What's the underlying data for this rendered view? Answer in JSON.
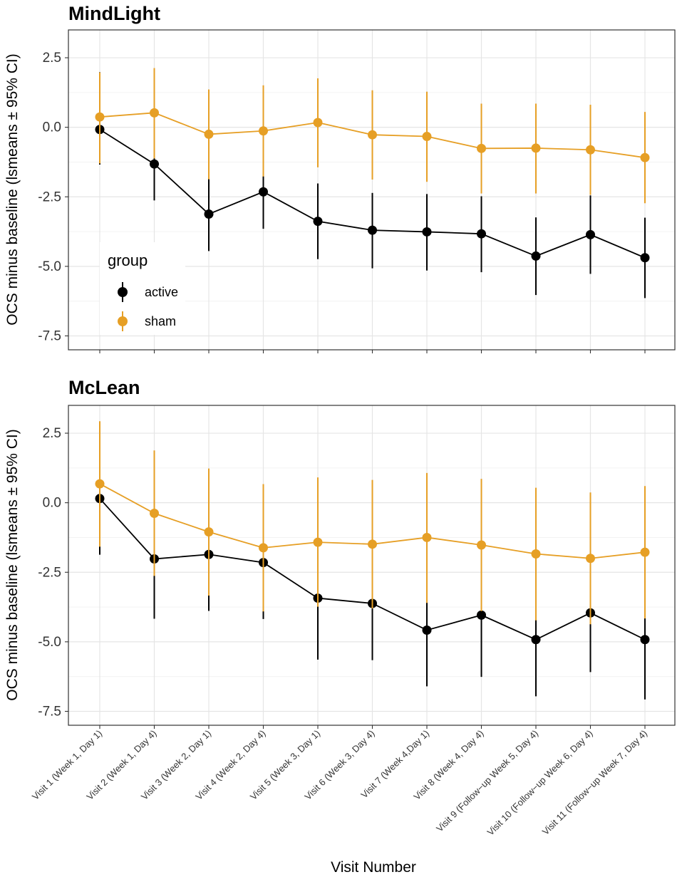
{
  "chart_data": [
    {
      "type": "line",
      "title": "MindLight",
      "ylabel": "OCS minus baseline (lsmeans ± 95% CI)",
      "xlabel": "",
      "ylim": [
        -8.0,
        3.5
      ],
      "yticks": [
        2.5,
        0.0,
        -2.5,
        -5.0,
        -7.5
      ],
      "ytick_labels": [
        "2.5",
        "0.0",
        "-2.5",
        "-5.0",
        "-7.5"
      ],
      "grid": true,
      "legend": {
        "title": "group",
        "position": "bottom-left",
        "entries": [
          "active",
          "sham"
        ]
      },
      "categories": [
        "Visit 1 (Week 1, Day 1)",
        "Visit 2 (Week 1, Day 4)",
        "Visit 3 (Week 2, Day 1)",
        "Visit 4 (Week 2, Day 4)",
        "Visit 5 (Week 3, Day 1)",
        "Visit 6 (Week 3, Day 4)",
        "Visit 7 (Week 4,Day 1)",
        "Visit 8 (Week 4, Day 4)",
        "Visit 9 (Follow−up Week 5, Day 4)",
        "Visit 10 (Follow−up Week 6, Day 4)",
        "Visit 11 (Follow−up Week 7, Day 4)"
      ],
      "series": [
        {
          "name": "active",
          "color": "#000000",
          "values": [
            -0.08,
            -1.32,
            -3.12,
            -2.32,
            -3.38,
            -3.7,
            -3.76,
            -3.83,
            -4.63,
            -3.86,
            -4.69
          ],
          "lower": [
            -1.34,
            -2.63,
            -4.45,
            -3.65,
            -4.74,
            -5.07,
            -5.15,
            -5.21,
            -6.03,
            -5.27,
            -6.14
          ],
          "upper": [
            1.98,
            -0.05,
            -1.85,
            -1.73,
            -2.02,
            -2.36,
            -2.4,
            -2.48,
            -3.24,
            -2.45,
            -3.25
          ]
        },
        {
          "name": "sham",
          "color": "#E69F25",
          "values": [
            0.37,
            0.52,
            -0.25,
            -0.13,
            0.17,
            -0.27,
            -0.33,
            -0.76,
            -0.75,
            -0.81,
            -1.09
          ],
          "lower": [
            -1.3,
            -1.12,
            -1.87,
            -1.77,
            -1.44,
            -1.88,
            -1.96,
            -2.38,
            -2.38,
            -2.43,
            -2.73
          ],
          "upper": [
            1.97,
            2.13,
            1.36,
            1.51,
            1.76,
            1.33,
            1.28,
            0.85,
            0.85,
            0.81,
            0.55
          ]
        }
      ]
    },
    {
      "type": "line",
      "title": "McLean",
      "ylabel": "OCS minus baseline (lsmeans ± 95% CI)",
      "xlabel": "Visit Number",
      "ylim": [
        -8.0,
        3.5
      ],
      "yticks": [
        2.5,
        0.0,
        -2.5,
        -5.0,
        -7.5
      ],
      "ytick_labels": [
        "2.5",
        "0.0",
        "-2.5",
        "-5.0",
        "-7.5"
      ],
      "grid": true,
      "legend": null,
      "categories": [
        "Visit 1 (Week 1, Day 1)",
        "Visit 2 (Week 1, Day 4)",
        "Visit 3 (Week 2, Day 1)",
        "Visit 4 (Week 2, Day 4)",
        "Visit 5 (Week 3, Day 1)",
        "Visit 6 (Week 3, Day 4)",
        "Visit 7 (Week 4,Day 1)",
        "Visit 8 (Week 4, Day 4)",
        "Visit 9 (Follow−up Week 5, Day 4)",
        "Visit 10 (Follow−up Week 6, Day 4)",
        "Visit 11 (Follow−up Week 7, Day 4)"
      ],
      "series": [
        {
          "name": "active",
          "color": "#000000",
          "values": [
            0.15,
            -2.02,
            -1.86,
            -2.15,
            -3.43,
            -3.62,
            -4.58,
            -4.04,
            -4.92,
            -3.96,
            -4.92
          ],
          "lower": [
            -1.87,
            -4.17,
            -3.89,
            -4.18,
            -5.64,
            -5.66,
            -6.6,
            -6.26,
            -6.96,
            -6.09,
            -7.07
          ],
          "upper": [
            2.19,
            0.12,
            0.18,
            -0.1,
            -1.22,
            -1.58,
            -2.56,
            -1.82,
            -2.86,
            -1.84,
            -2.77
          ]
        },
        {
          "name": "sham",
          "color": "#E69F25",
          "values": [
            0.68,
            -0.38,
            -1.05,
            -1.62,
            -1.42,
            -1.49,
            -1.25,
            -1.52,
            -1.84,
            -2.0,
            -1.78
          ],
          "lower": [
            -1.58,
            -2.63,
            -3.34,
            -3.91,
            -3.74,
            -3.8,
            -3.6,
            -3.9,
            -4.23,
            -4.37,
            -4.16
          ],
          "upper": [
            2.93,
            1.88,
            1.23,
            0.67,
            0.91,
            0.82,
            1.07,
            0.86,
            0.54,
            0.37,
            0.6
          ]
        }
      ]
    }
  ]
}
